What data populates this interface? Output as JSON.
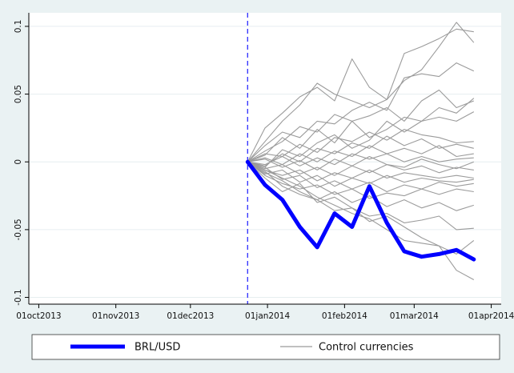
{
  "chart_data": {
    "type": "line",
    "title": "",
    "xlabel": "",
    "ylabel": "",
    "ylim": [
      -0.105,
      0.11
    ],
    "xlim": [
      "2013-09-27",
      "2014-04-05"
    ],
    "grid": true,
    "event_line": "2013-12-24",
    "y_ticks": [
      {
        "value": 0.1,
        "label": "0.1"
      },
      {
        "value": 0.05,
        "label": "0.05"
      },
      {
        "value": 0,
        "label": "0"
      },
      {
        "value": -0.05,
        "label": "-0.05"
      },
      {
        "value": -0.1,
        "label": "-0.1"
      }
    ],
    "x_ticks": [
      {
        "date": "2013-10-01",
        "label": "01oct2013"
      },
      {
        "date": "2013-11-01",
        "label": "01nov2013"
      },
      {
        "date": "2013-12-01",
        "label": "01dec2013"
      },
      {
        "date": "2014-01-01",
        "label": "01jan2014"
      },
      {
        "date": "2014-02-01",
        "label": "01feb2014"
      },
      {
        "date": "2014-03-01",
        "label": "01mar2014"
      },
      {
        "date": "2014-04-01",
        "label": "01apr2014"
      }
    ],
    "x": [
      "2013-12-24",
      "2013-12-31",
      "2014-01-07",
      "2014-01-14",
      "2014-01-21",
      "2014-01-28",
      "2014-02-04",
      "2014-02-11",
      "2014-02-18",
      "2014-02-25",
      "2014-03-04",
      "2014-03-11",
      "2014-03-18",
      "2014-03-25"
    ],
    "series": [
      {
        "name": "BRL/USD",
        "color": "#0000ff",
        "values": [
          0,
          -0.017,
          -0.028,
          -0.048,
          -0.063,
          -0.038,
          -0.048,
          -0.018,
          -0.045,
          -0.066,
          -0.07,
          -0.068,
          -0.065,
          -0.072
        ]
      }
    ],
    "control_series_name": "Control currencies",
    "control_color": "#9b9b9b",
    "control_series": [
      [
        0,
        0.015,
        0.03,
        0.042,
        0.058,
        0.05,
        0.045,
        0.04,
        0.046,
        0.06,
        0.068,
        0.085,
        0.103,
        0.088
      ],
      [
        0,
        0.025,
        0.036,
        0.048,
        0.055,
        0.045,
        0.076,
        0.055,
        0.046,
        0.08,
        0.085,
        0.091,
        0.098,
        0.096
      ],
      [
        0,
        0.012,
        0.022,
        0.018,
        0.03,
        0.028,
        0.038,
        0.044,
        0.038,
        0.062,
        0.065,
        0.063,
        0.073,
        0.067
      ],
      [
        0,
        0.008,
        0.015,
        0.026,
        0.022,
        0.035,
        0.03,
        0.034,
        0.04,
        0.03,
        0.045,
        0.053,
        0.04,
        0.045
      ],
      [
        0,
        0.005,
        0.018,
        0.01,
        0.024,
        0.014,
        0.03,
        0.018,
        0.024,
        0.033,
        0.03,
        0.04,
        0.036,
        0.047
      ],
      [
        0,
        -0.004,
        0.009,
        0.004,
        0.014,
        0.02,
        0.01,
        0.016,
        0.03,
        0.022,
        0.03,
        0.033,
        0.03,
        0.037
      ],
      [
        0,
        0.006,
        0.004,
        0.013,
        0.007,
        0.018,
        0.015,
        0.022,
        0.016,
        0.024,
        0.02,
        0.018,
        0.014,
        0.015
      ],
      [
        0,
        -0.003,
        0.006,
        0.0,
        0.01,
        0.006,
        0.014,
        0.01,
        0.019,
        0.012,
        0.017,
        0.01,
        0.013,
        0.01
      ],
      [
        0,
        0.003,
        -0.002,
        0.006,
        0.0,
        0.008,
        0.004,
        0.012,
        0.006,
        0.01,
        0.006,
        0.012,
        0.004,
        0.006
      ],
      [
        0,
        -0.002,
        0.004,
        -0.003,
        0.003,
        -0.002,
        0.006,
        0.002,
        0.006,
        0.0,
        0.004,
        0.0,
        0.002,
        0.003
      ],
      [
        0,
        0.002,
        -0.004,
        0.001,
        -0.006,
        0.002,
        -0.003,
        0.004,
        -0.002,
        -0.004,
        0.002,
        -0.002,
        -0.005,
        0.0
      ],
      [
        0,
        -0.005,
        -0.002,
        -0.009,
        -0.004,
        -0.01,
        -0.003,
        -0.008,
        -0.002,
        -0.006,
        -0.003,
        -0.008,
        -0.004,
        -0.006
      ],
      [
        0,
        -0.006,
        -0.01,
        -0.006,
        -0.014,
        -0.008,
        -0.012,
        -0.006,
        -0.012,
        -0.008,
        -0.01,
        -0.012,
        -0.01,
        -0.012
      ],
      [
        0,
        -0.009,
        -0.006,
        -0.015,
        -0.01,
        -0.018,
        -0.012,
        -0.016,
        -0.01,
        -0.015,
        -0.012,
        -0.014,
        -0.015,
        -0.013
      ],
      [
        0,
        -0.004,
        -0.013,
        -0.01,
        -0.019,
        -0.014,
        -0.02,
        -0.015,
        -0.022,
        -0.017,
        -0.02,
        -0.015,
        -0.018,
        -0.016
      ],
      [
        0,
        -0.01,
        -0.016,
        -0.02,
        -0.017,
        -0.024,
        -0.02,
        -0.027,
        -0.023,
        -0.025,
        -0.02,
        -0.024,
        -0.02,
        -0.022
      ],
      [
        0,
        -0.007,
        -0.018,
        -0.024,
        -0.028,
        -0.022,
        -0.03,
        -0.025,
        -0.033,
        -0.028,
        -0.034,
        -0.03,
        -0.036,
        -0.032
      ],
      [
        0,
        -0.012,
        -0.022,
        -0.016,
        -0.03,
        -0.026,
        -0.034,
        -0.04,
        -0.038,
        -0.045,
        -0.043,
        -0.04,
        -0.05,
        -0.049
      ],
      [
        0,
        -0.008,
        -0.014,
        -0.022,
        -0.028,
        -0.036,
        -0.034,
        -0.044,
        -0.04,
        -0.048,
        -0.056,
        -0.062,
        -0.068,
        -0.058
      ],
      [
        0,
        -0.006,
        -0.012,
        -0.018,
        -0.026,
        -0.032,
        -0.038,
        -0.042,
        -0.05,
        -0.058,
        -0.06,
        -0.062,
        -0.08,
        -0.087
      ]
    ],
    "legend": {
      "position": "bottom",
      "items": [
        {
          "label": "BRL/USD",
          "color": "#0000ff",
          "width": "thick"
        },
        {
          "label": "Control currencies",
          "color": "#9b9b9b",
          "width": "thin"
        }
      ]
    }
  }
}
